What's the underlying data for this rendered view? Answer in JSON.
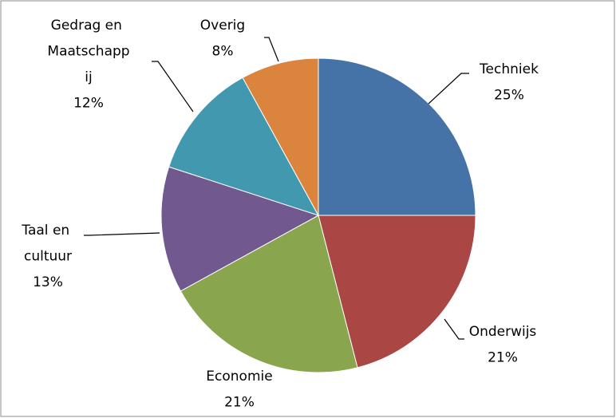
{
  "chart_data": {
    "type": "pie",
    "categories": [
      "Techniek",
      "Onderwijs",
      "Economie",
      "Taal en cultuur",
      "Gedrag en Maatschappij",
      "Overig"
    ],
    "values": [
      25,
      21,
      21,
      13,
      12,
      8
    ],
    "value_labels": [
      "25%",
      "21%",
      "21%",
      "13%",
      "12%",
      "8%"
    ],
    "colors": [
      "#4572a7",
      "#aa4643",
      "#89a54e",
      "#71588f",
      "#4198af",
      "#db843d"
    ]
  }
}
